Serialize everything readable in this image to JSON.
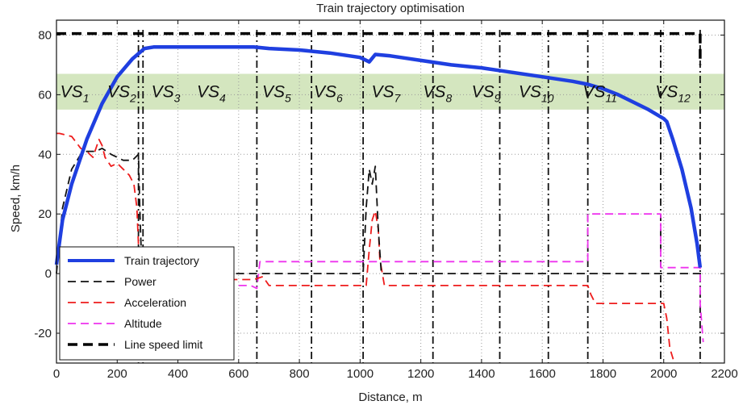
{
  "chart_data": {
    "type": "line",
    "title": "Train trajectory optimisation",
    "xlabel": "Distance, m",
    "ylabel": "Speed, km/h",
    "xlim": [
      0,
      2200
    ],
    "ylim": [
      -30,
      85
    ],
    "xticks": [
      0,
      200,
      400,
      600,
      800,
      1000,
      1200,
      1400,
      1600,
      1800,
      2000,
      2200
    ],
    "yticks": [
      -20,
      0,
      20,
      40,
      60,
      80
    ],
    "xtick_labels": [
      "0",
      "200",
      "400",
      "600",
      "800",
      "1000",
      "1200",
      "1400",
      "1600",
      "1800",
      "2000",
      "2200"
    ],
    "ytick_labels": [
      "-20",
      "0",
      "20",
      "40",
      "60",
      "80"
    ],
    "grid": "dotted",
    "legend_position": "bottom-left",
    "band": {
      "y_range": [
        55,
        67
      ],
      "color": "#d4e6bf"
    },
    "segment_boundaries": [
      270,
      285,
      660,
      840,
      1010,
      1240,
      1460,
      1620,
      1750,
      1990,
      2120
    ],
    "segments": [
      {
        "label": "VS",
        "sub": "1",
        "x": 60
      },
      {
        "label": "VS",
        "sub": "2",
        "x": 215
      },
      {
        "label": "VS",
        "sub": "3",
        "x": 360
      },
      {
        "label": "VS",
        "sub": "4",
        "x": 510
      },
      {
        "label": "VS",
        "sub": "5",
        "x": 725
      },
      {
        "label": "VS",
        "sub": "6",
        "x": 895
      },
      {
        "label": "VS",
        "sub": "7",
        "x": 1085
      },
      {
        "label": "VS",
        "sub": "8",
        "x": 1255
      },
      {
        "label": "VS",
        "sub": "9",
        "x": 1415
      },
      {
        "label": "VS",
        "sub": "10",
        "x": 1580
      },
      {
        "label": "VS",
        "sub": "11",
        "x": 1790
      },
      {
        "label": "VS",
        "sub": "12",
        "x": 2030
      }
    ],
    "series": [
      {
        "name": "Train trajectory",
        "color": "#1f3fe0",
        "dash": "solid",
        "width": 4.5,
        "x": [
          0,
          20,
          50,
          100,
          150,
          200,
          250,
          290,
          320,
          400,
          500,
          600,
          650,
          700,
          800,
          900,
          1000,
          1030,
          1050,
          1100,
          1200,
          1300,
          1400,
          1500,
          1600,
          1700,
          1750,
          1800,
          1850,
          1900,
          1950,
          2000,
          2010,
          2030,
          2060,
          2090,
          2110,
          2120
        ],
        "y": [
          3,
          18,
          30,
          45,
          57,
          66,
          72,
          75.5,
          76,
          76,
          76,
          76,
          76,
          75.5,
          75,
          74,
          72.5,
          71,
          73.5,
          73,
          71.5,
          70,
          69,
          67.5,
          66,
          64.5,
          63.5,
          62,
          60,
          57.5,
          55,
          52,
          51,
          45,
          35,
          22,
          10,
          2
        ]
      },
      {
        "name": "Power",
        "color": "#111111",
        "dash": "10,6",
        "width": 1.8,
        "x": [
          0,
          20,
          50,
          80,
          100,
          130,
          150,
          180,
          200,
          220,
          240,
          250,
          260,
          270,
          275,
          280,
          285,
          295,
          1010,
          1020,
          1030,
          1040,
          1050,
          1060,
          1070,
          2130
        ],
        "y": [
          0,
          22,
          35,
          40,
          41,
          41,
          42,
          40,
          39,
          38,
          38,
          38,
          39,
          40,
          20,
          5,
          0,
          0,
          0,
          22,
          35,
          30,
          36,
          15,
          0,
          0
        ]
      },
      {
        "name": "Acceleration",
        "color": "#ee1c1c",
        "dash": "10,6",
        "width": 1.8,
        "x": [
          0,
          10,
          50,
          80,
          100,
          120,
          140,
          150,
          160,
          180,
          200,
          220,
          240,
          255,
          265,
          270,
          280,
          290,
          295,
          610,
          650,
          680,
          700,
          1020,
          1030,
          1040,
          1050,
          1060,
          1065,
          1080,
          1750,
          1760,
          1775,
          2000,
          2010,
          2020,
          2035
        ],
        "y": [
          47,
          47,
          46,
          42,
          41,
          39,
          45,
          43,
          39,
          36,
          37,
          35,
          33,
          30,
          22,
          10,
          0,
          -2,
          -2,
          -2,
          -2,
          -1,
          -4,
          -4,
          8,
          18,
          21,
          15,
          5,
          -4,
          -4,
          -7,
          -10,
          -10,
          -15,
          -25,
          -30
        ]
      },
      {
        "name": "Altitude",
        "color": "#ee33ee",
        "dash": "10,6",
        "width": 1.8,
        "x": [
          600,
          620,
          640,
          660,
          670,
          680,
          1750,
          1750,
          1990,
          1990,
          2120,
          2120,
          2130
        ],
        "y": [
          -4,
          -4,
          -4,
          -5,
          4,
          4,
          4,
          20,
          20,
          2,
          2,
          -10,
          -23
        ]
      },
      {
        "name": "Line speed limit",
        "color": "#000000",
        "dash": "12,7",
        "width": 3.5,
        "x": [
          0,
          2120,
          2120
        ],
        "y": [
          80.5,
          80.5,
          70
        ]
      }
    ]
  }
}
